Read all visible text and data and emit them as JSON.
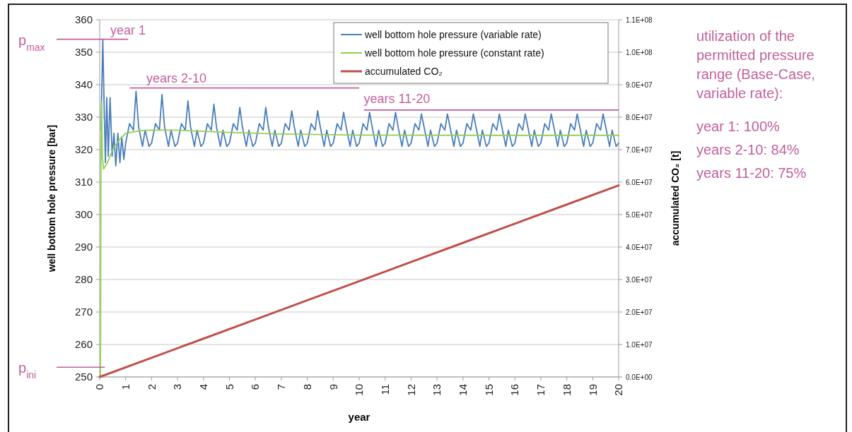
{
  "chart_data": {
    "type": "line",
    "xlabel": "year",
    "ylabel": "well bottom hole pressure [bar]",
    "y2label": "accumulated CO₂ [t]",
    "xlim": [
      0,
      20
    ],
    "xticks": [
      0,
      1,
      2,
      3,
      4,
      5,
      6,
      7,
      8,
      9,
      10,
      11,
      12,
      13,
      14,
      15,
      16,
      17,
      18,
      19,
      20
    ],
    "ylim": [
      250,
      360
    ],
    "yticks": [
      250,
      260,
      270,
      280,
      290,
      300,
      310,
      320,
      330,
      340,
      350,
      360
    ],
    "y2lim": [
      0,
      110000000
    ],
    "y2ticks": [
      {
        "value": 0,
        "label": "0.0E+00"
      },
      {
        "value": 10000000,
        "label": "1.0E+07"
      },
      {
        "value": 20000000,
        "label": "2.0E+07"
      },
      {
        "value": 30000000,
        "label": "3.0E+07"
      },
      {
        "value": 40000000,
        "label": "4.0E+07"
      },
      {
        "value": 50000000,
        "label": "5.0E+07"
      },
      {
        "value": 60000000,
        "label": "6.0E+07"
      },
      {
        "value": 70000000,
        "label": "7.0E+07"
      },
      {
        "value": 80000000,
        "label": "8.0E+07"
      },
      {
        "value": 90000000,
        "label": "9.0E+07"
      },
      {
        "value": 100000000,
        "label": "1.0E+08"
      },
      {
        "value": 110000000,
        "label": "1.1E+08"
      }
    ],
    "grid": "y",
    "legend": "top right",
    "marker": "none",
    "line_style": "solid",
    "series": [
      {
        "name": "well bottom hole pressure (variable rate)",
        "color": "#4a7ebb",
        "x": [
          0.05,
          0.12,
          0.18,
          0.22,
          0.27,
          0.33,
          0.4,
          0.48,
          0.55,
          0.62,
          0.7,
          0.78,
          0.85,
          0.93,
          1,
          1.15,
          1.3,
          1.4,
          1.5,
          1.65,
          1.75,
          1.9,
          2,
          2.15,
          2.3,
          2.4,
          2.5,
          2.65,
          2.75,
          2.9,
          3,
          3.15,
          3.3,
          3.4,
          3.5,
          3.65,
          3.75,
          3.9,
          4,
          4.15,
          4.3,
          4.4,
          4.5,
          4.65,
          4.75,
          4.9,
          5,
          5.15,
          5.3,
          5.4,
          5.5,
          5.65,
          5.75,
          5.9,
          6,
          6.15,
          6.3,
          6.4,
          6.5,
          6.65,
          6.75,
          6.9,
          7,
          7.15,
          7.3,
          7.4,
          7.5,
          7.65,
          7.75,
          7.9,
          8,
          8.15,
          8.3,
          8.4,
          8.5,
          8.65,
          8.75,
          8.9,
          9,
          9.15,
          9.3,
          9.4,
          9.5,
          9.65,
          9.75,
          9.9,
          10,
          10.15,
          10.3,
          10.4,
          10.5,
          10.65,
          10.75,
          10.9,
          11,
          11.15,
          11.3,
          11.4,
          11.5,
          11.65,
          11.75,
          11.9,
          12,
          12.15,
          12.3,
          12.4,
          12.5,
          12.65,
          12.75,
          12.9,
          13,
          13.15,
          13.3,
          13.4,
          13.5,
          13.65,
          13.75,
          13.9,
          14,
          14.15,
          14.3,
          14.4,
          14.5,
          14.65,
          14.75,
          14.9,
          15,
          15.15,
          15.3,
          15.4,
          15.5,
          15.65,
          15.75,
          15.9,
          16,
          16.15,
          16.3,
          16.4,
          16.5,
          16.65,
          16.75,
          16.9,
          17,
          17.15,
          17.3,
          17.4,
          17.5,
          17.65,
          17.75,
          17.9,
          18,
          18.15,
          18.3,
          18.4,
          18.5,
          18.65,
          18.75,
          18.9,
          19,
          19.15,
          19.3,
          19.4,
          19.5,
          19.65,
          19.75,
          19.9,
          20
        ],
        "values": [
          326,
          354,
          330,
          316,
          336,
          318,
          336,
          318,
          325,
          315,
          325,
          316,
          324,
          317,
          322,
          328,
          326,
          338,
          327,
          321,
          326,
          321,
          322,
          328,
          326,
          337,
          327,
          321,
          326,
          321,
          322,
          328,
          326,
          335,
          327,
          321,
          326,
          321,
          322,
          328,
          326,
          334,
          327,
          321,
          326,
          321,
          322,
          328,
          326,
          333,
          327,
          321,
          326,
          321,
          322,
          328,
          326,
          333,
          327,
          321,
          326,
          321,
          322,
          328,
          326,
          332,
          327,
          321,
          326,
          321,
          322,
          328,
          326,
          332,
          327,
          321,
          326,
          321,
          322,
          328,
          326,
          331.5,
          327,
          321,
          326,
          321,
          322,
          328,
          326,
          331.5,
          327,
          321,
          326,
          321,
          322,
          328,
          326,
          331.5,
          327,
          321,
          326,
          321,
          322,
          328,
          326,
          331,
          327,
          321,
          326,
          321,
          322,
          328,
          326,
          331,
          327,
          321,
          326,
          321,
          322,
          328,
          326,
          331,
          327,
          321,
          326,
          321,
          322,
          328,
          326,
          331,
          327,
          321,
          326,
          321,
          322,
          328,
          326,
          331,
          327,
          321,
          326,
          321,
          322,
          328,
          326,
          331,
          327,
          321,
          326,
          321,
          322,
          328,
          326,
          331,
          327,
          321,
          326,
          321,
          322,
          328,
          326,
          331,
          327,
          321,
          326,
          321,
          322
        ]
      },
      {
        "name": "well bottom hole pressure (constant rate)",
        "color": "#92d050",
        "x": [
          0.03,
          0.05,
          0.07,
          0.1,
          0.15,
          0.22,
          0.3,
          0.5,
          0.75,
          1,
          1.5,
          2,
          3,
          5,
          7,
          10,
          15,
          20
        ],
        "values": [
          250,
          320,
          335,
          318,
          314,
          315,
          316,
          320,
          323,
          325,
          325.8,
          326,
          326,
          325.3,
          324.8,
          324.5,
          324.4,
          324.4
        ]
      },
      {
        "name": "accumulated CO₂",
        "color": "#c0504d",
        "axis": "y2",
        "x": [
          0,
          2,
          4,
          6,
          8,
          10,
          12,
          14,
          16,
          18,
          20
        ],
        "values": [
          0,
          5900000,
          11800000,
          17700000,
          23600000,
          29500000,
          35400000,
          41300000,
          47200000,
          53100000,
          59000000
        ]
      }
    ],
    "ref_lines": [
      {
        "axis": "y",
        "value": 354,
        "label": "p$_{max}$",
        "color": "#c0609a"
      },
      {
        "axis": "y",
        "value": 253,
        "label": "p$_{ini}$",
        "color": "#c0609a"
      },
      {
        "axis": "y",
        "value": 339,
        "label": "years 2-10",
        "color": "#c0609a"
      },
      {
        "axis": "y",
        "value": 332.2,
        "label": "years 11-20",
        "color": "#c0609a"
      }
    ],
    "annotations": [
      "year 1",
      "utilization of the permitted pressure range (Base-Case, variable rate):",
      "year 1: 100%",
      "years 2-10: 84%",
      "years 11-20: 75%"
    ]
  }
}
